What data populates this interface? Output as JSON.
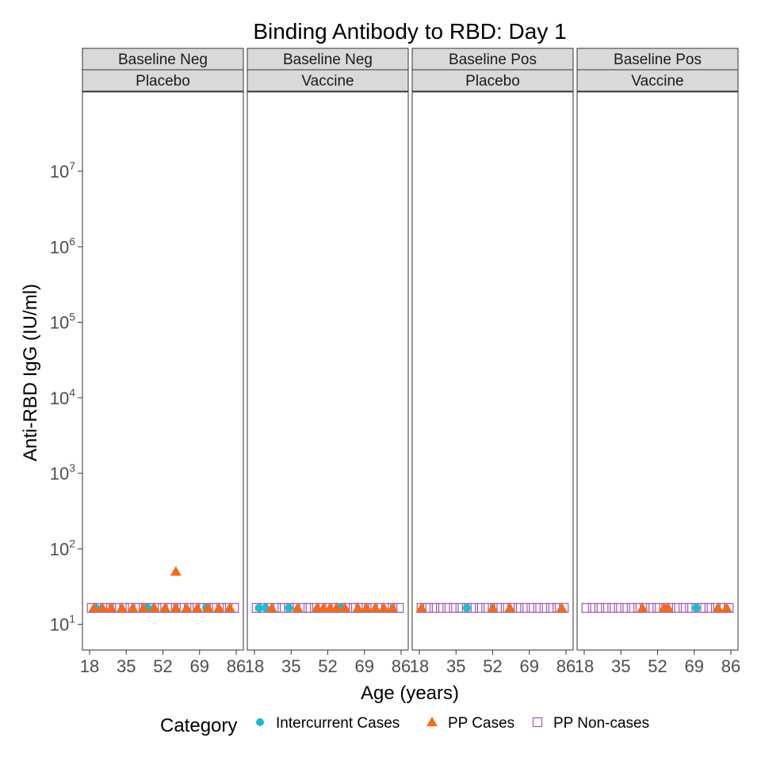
{
  "chart_data": {
    "type": "scatter",
    "title": "Binding Antibody to RBD: Day 1",
    "xlabel": "Age (years)",
    "ylabel": "Anti-RBD IgG (IU/ml)",
    "x_ticks": [
      "18",
      "35",
      "52",
      "69",
      "86"
    ],
    "y_scale": "log10",
    "y_ticks": [
      {
        "base": "10",
        "exp": "1"
      },
      {
        "base": "10",
        "exp": "2"
      },
      {
        "base": "10",
        "exp": "3"
      },
      {
        "base": "10",
        "exp": "4"
      },
      {
        "base": "10",
        "exp": "5"
      },
      {
        "base": "10",
        "exp": "6"
      },
      {
        "base": "10",
        "exp": "7"
      }
    ],
    "xlim": [
      18,
      86
    ],
    "ylim_log10": [
      0.66,
      8.05
    ],
    "grid": false,
    "legend": {
      "title": "Category",
      "position": "bottom",
      "entries": [
        {
          "label": "Intercurrent Cases",
          "shape": "circle",
          "color": "#17becf"
        },
        {
          "label": "PP Cases",
          "shape": "triangle",
          "color": "#f26b1d"
        },
        {
          "label": "PP Non-cases",
          "shape": "square-open",
          "color": "#9b59b6"
        }
      ]
    },
    "panels": [
      {
        "strip_top": "Baseline Neg",
        "strip_bottom": "Placebo",
        "series": [
          {
            "category": "PP Non-cases",
            "x": [
              19,
              22,
              25,
              28,
              31,
              34,
              37,
              40,
              43,
              46,
              49,
              52,
              55,
              58,
              61,
              64,
              67,
              70,
              73,
              76,
              79,
              82,
              85
            ],
            "y": [
              16.5,
              16.5,
              16.5,
              16.5,
              16.5,
              16.5,
              16.5,
              16.5,
              16.5,
              16.5,
              16.5,
              16.5,
              16.5,
              16.5,
              16.5,
              16.5,
              16.5,
              16.5,
              16.5,
              16.5,
              16.5,
              16.5,
              16.5
            ]
          },
          {
            "category": "PP Cases",
            "x": [
              20,
              24,
              28,
              33,
              38,
              43,
              48,
              53,
              58,
              63,
              68,
              73,
              78,
              83
            ],
            "y": [
              16.5,
              16.5,
              16.5,
              16.5,
              16.5,
              16.5,
              16.5,
              16.5,
              16.5,
              16.5,
              16.5,
              16.5,
              16.5,
              16.5
            ]
          },
          {
            "category": "PP Cases",
            "x": [
              58
            ],
            "y": [
              50
            ]
          },
          {
            "category": "Intercurrent Cases",
            "x": [
              21,
              45,
              72
            ],
            "y": [
              16.5,
              16.5,
              16.5
            ]
          }
        ]
      },
      {
        "strip_top": "Baseline Neg",
        "strip_bottom": "Vaccine",
        "series": [
          {
            "category": "PP Non-cases",
            "x": [
              19,
              22,
              25,
              28,
              31,
              34,
              37,
              40,
              43,
              46,
              49,
              52,
              55,
              58,
              61,
              64,
              67,
              70,
              73,
              76,
              79,
              82,
              85
            ],
            "y": [
              16.5,
              16.5,
              16.5,
              16.5,
              16.5,
              16.5,
              16.5,
              16.5,
              16.5,
              16.5,
              16.5,
              16.5,
              16.5,
              16.5,
              16.5,
              16.5,
              16.5,
              16.5,
              16.5,
              16.5,
              16.5,
              16.5,
              16.5
            ]
          },
          {
            "category": "PP Cases",
            "x": [
              26,
              38,
              47,
              50,
              53,
              56,
              60,
              66,
              70,
              74,
              78,
              82
            ],
            "y": [
              16.5,
              16.5,
              16.5,
              16.5,
              16.5,
              16.5,
              16.5,
              16.5,
              16.5,
              16.5,
              16.5,
              16.5
            ]
          },
          {
            "category": "Intercurrent Cases",
            "x": [
              20,
              23,
              34,
              58
            ],
            "y": [
              16.5,
              16.5,
              16.5,
              16.5
            ]
          }
        ]
      },
      {
        "strip_top": "Baseline Pos",
        "strip_bottom": "Placebo",
        "series": [
          {
            "category": "PP Non-cases",
            "x": [
              19,
              22,
              25,
              28,
              31,
              34,
              37,
              40,
              43,
              46,
              49,
              52,
              55,
              58,
              61,
              64,
              67,
              70,
              73,
              76,
              79,
              82,
              85
            ],
            "y": [
              16.5,
              16.5,
              16.5,
              16.5,
              16.5,
              16.5,
              16.5,
              16.5,
              16.5,
              16.5,
              16.5,
              16.5,
              16.5,
              16.5,
              16.5,
              16.5,
              16.5,
              16.5,
              16.5,
              16.5,
              16.5,
              16.5,
              16.5
            ]
          },
          {
            "category": "PP Cases",
            "x": [
              19,
              52,
              60,
              84
            ],
            "y": [
              16.5,
              16.5,
              16.5,
              16.5
            ]
          },
          {
            "category": "Intercurrent Cases",
            "x": [
              40
            ],
            "y": [
              16.5
            ]
          }
        ]
      },
      {
        "strip_top": "Baseline Pos",
        "strip_bottom": "Vaccine",
        "series": [
          {
            "category": "PP Non-cases",
            "x": [
              19,
              22,
              25,
              28,
              31,
              34,
              37,
              40,
              43,
              46,
              49,
              52,
              55,
              58,
              61,
              64,
              67,
              70,
              73,
              76,
              79,
              82,
              85
            ],
            "y": [
              16.5,
              16.5,
              16.5,
              16.5,
              16.5,
              16.5,
              16.5,
              16.5,
              16.5,
              16.5,
              16.5,
              16.5,
              16.5,
              16.5,
              16.5,
              16.5,
              16.5,
              16.5,
              16.5,
              16.5,
              16.5,
              16.5,
              16.5
            ]
          },
          {
            "category": "PP Cases",
            "x": [
              45,
              55,
              57,
              80,
              84
            ],
            "y": [
              16.5,
              16.5,
              16.5,
              16.5,
              16.5
            ]
          },
          {
            "category": "Intercurrent Cases",
            "x": [
              70
            ],
            "y": [
              16.5
            ]
          }
        ]
      }
    ]
  }
}
